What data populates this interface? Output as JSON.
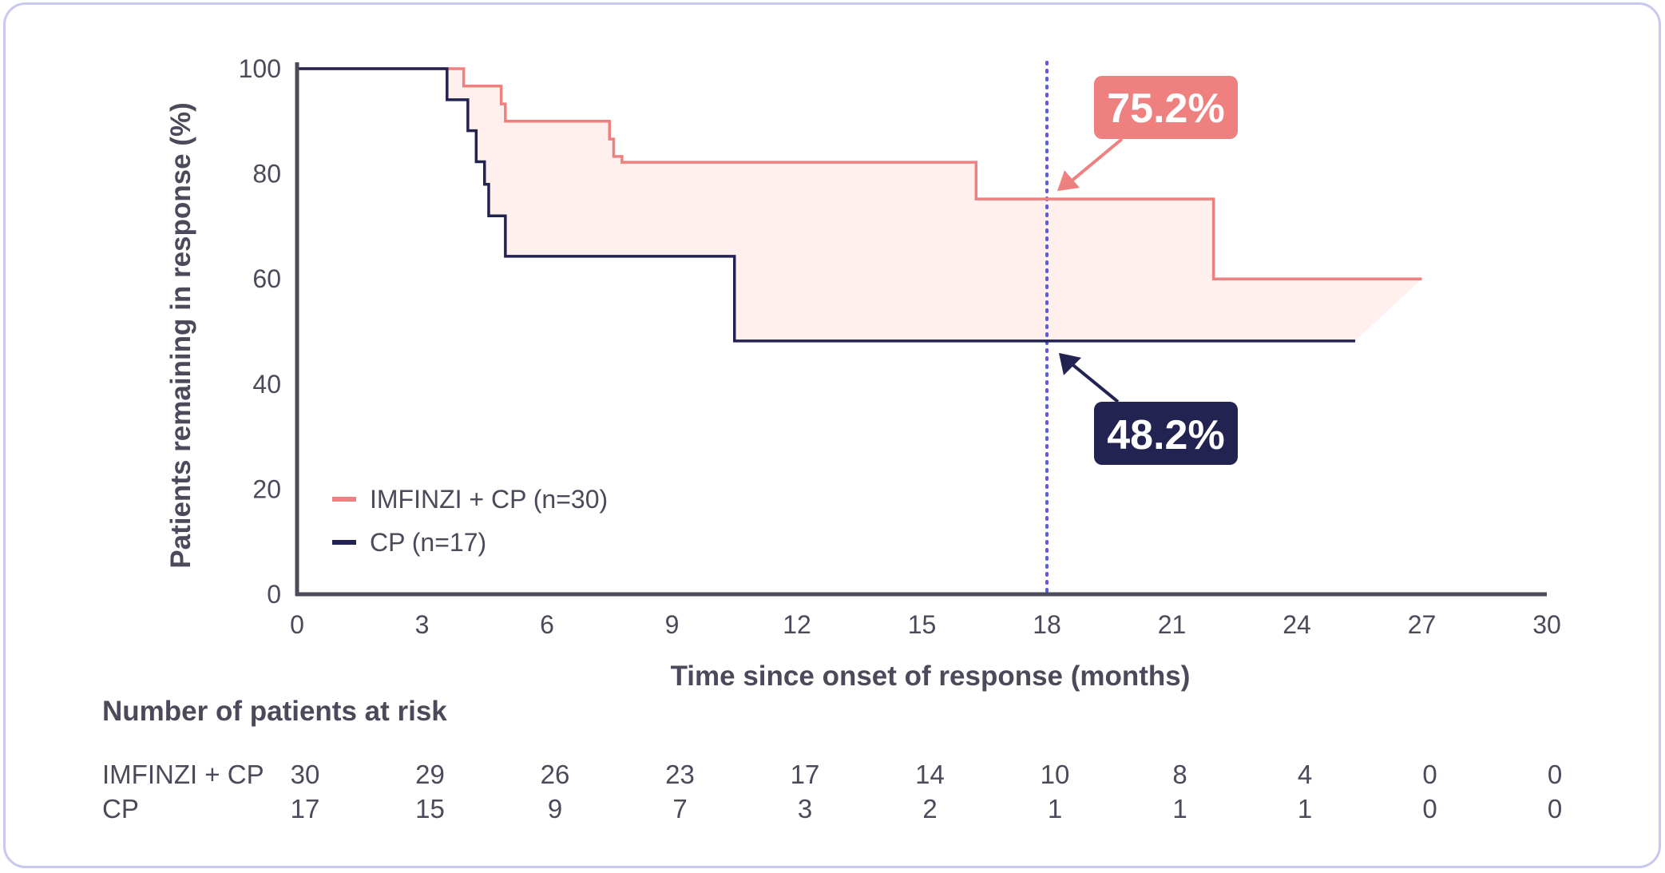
{
  "chart_data": {
    "type": "line",
    "subtype": "kaplan-meier",
    "title": "",
    "xlabel": "Time since onset of response (months)",
    "ylabel": "Patients remaining in response (%)",
    "xlim": [
      0,
      30
    ],
    "ylim": [
      0,
      100
    ],
    "x_ticks": [
      "0",
      "3",
      "6",
      "9",
      "12",
      "15",
      "18",
      "21",
      "24",
      "27",
      "30"
    ],
    "y_ticks": [
      "0",
      "20",
      "40",
      "60",
      "80",
      "100"
    ],
    "grid": false,
    "legend_position": "lower-left",
    "series": [
      {
        "name": "IMFINZI + CP (n=30)",
        "color": "#ee8080",
        "steps": [
          [
            0,
            100
          ],
          [
            4.0,
            96.7
          ],
          [
            4.9,
            93.3
          ],
          [
            5.0,
            90.0
          ],
          [
            7.5,
            86.6
          ],
          [
            7.6,
            83.3
          ],
          [
            7.8,
            82.2
          ],
          [
            16.3,
            75.2
          ],
          [
            22.0,
            60.0
          ],
          [
            27.0,
            60.0
          ]
        ]
      },
      {
        "name": "CP (n=17)",
        "color": "#232352",
        "steps": [
          [
            0,
            100
          ],
          [
            3.6,
            94.1
          ],
          [
            4.1,
            88.2
          ],
          [
            4.3,
            82.3
          ],
          [
            4.5,
            78.0
          ],
          [
            4.6,
            72.0
          ],
          [
            5.0,
            64.3
          ],
          [
            10.5,
            48.2
          ],
          [
            25.4,
            48.2
          ]
        ]
      }
    ],
    "reference_line": {
      "x": 18,
      "color": "#5a5ae6",
      "style": "dotted"
    },
    "annotations": [
      {
        "text": "75.2%",
        "series": "IMFINZI + CP (n=30)",
        "x": 18,
        "y": 75.2,
        "color": "#ee8080"
      },
      {
        "text": "48.2%",
        "series": "CP (n=17)",
        "x": 18,
        "y": 48.2,
        "color": "#232352"
      }
    ],
    "risk_table": {
      "title": "Number of patients at risk",
      "rows": [
        {
          "label": "IMFINZI + CP",
          "values": [
            "30",
            "29",
            "26",
            "23",
            "17",
            "14",
            "10",
            "8",
            "4",
            "0",
            "0"
          ]
        },
        {
          "label": "CP",
          "values": [
            "17",
            "15",
            "9",
            "7",
            "3",
            "2",
            "1",
            "1",
            "1",
            "0",
            "0"
          ]
        }
      ]
    },
    "fill_between_color": "#fff0ee"
  }
}
